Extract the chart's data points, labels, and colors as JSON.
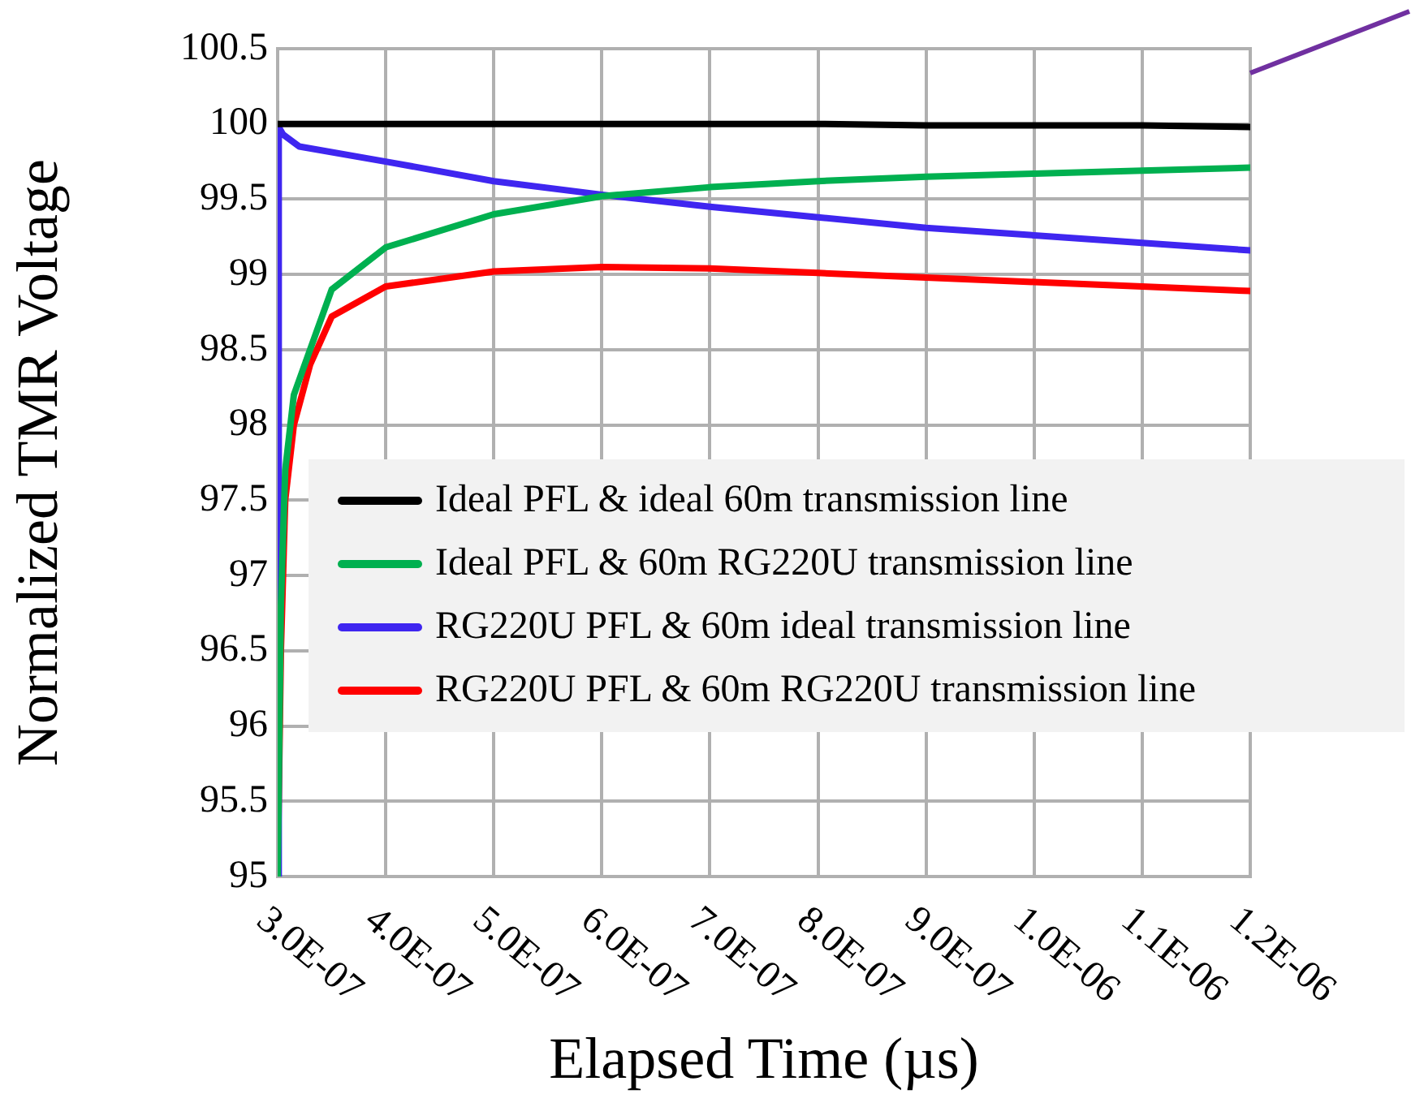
{
  "chart_data": {
    "type": "line",
    "xlabel": "Elapsed Time (µs)",
    "ylabel": "Normalized TMR Voltage",
    "xlim": [
      3e-07,
      1.2e-06
    ],
    "xticks": [
      {
        "value": 3e-07,
        "label": "3.0E-07"
      },
      {
        "value": 4e-07,
        "label": "4.0E-07"
      },
      {
        "value": 5e-07,
        "label": "5.0E-07"
      },
      {
        "value": 6e-07,
        "label": "6.0E-07"
      },
      {
        "value": 7e-07,
        "label": "7.0E-07"
      },
      {
        "value": 8e-07,
        "label": "8.0E-07"
      },
      {
        "value": 9e-07,
        "label": "9.0E-07"
      },
      {
        "value": 1e-06,
        "label": "1.0E-06"
      },
      {
        "value": 1.1e-06,
        "label": "1.1E-06"
      },
      {
        "value": 1.2e-06,
        "label": "1.2E-06"
      }
    ],
    "ylim": [
      95,
      100.5
    ],
    "yticks": [
      95,
      95.5,
      96,
      96.5,
      97,
      97.5,
      98,
      98.5,
      99,
      99.5,
      100,
      100.5
    ],
    "grid": true,
    "legend": "center",
    "marker": "none",
    "line_style": "solid",
    "series": [
      {
        "name": "Ideal PFL & ideal 60m transmission line",
        "color": "#000000",
        "x": [
          3e-07,
          4e-07,
          5e-07,
          6e-07,
          7e-07,
          8e-07,
          9e-07,
          1e-06,
          1.1e-06,
          1.2e-06
        ],
        "values": [
          100,
          100,
          100,
          100,
          100,
          100,
          99.99,
          99.99,
          99.99,
          99.98
        ]
      },
      {
        "name": "Ideal PFL & 60m RG220U transmission line",
        "color": "#00b050",
        "x": [
          3e-07,
          3.03e-07,
          3.07e-07,
          3.15e-07,
          3.3e-07,
          3.5e-07,
          4e-07,
          5e-07,
          6e-07,
          7e-07,
          8e-07,
          9e-07,
          1e-06,
          1.1e-06,
          1.2e-06
        ],
        "values": [
          95,
          96.8,
          97.7,
          98.2,
          98.5,
          98.9,
          99.18,
          99.4,
          99.52,
          99.58,
          99.62,
          99.65,
          99.67,
          99.69,
          99.71
        ]
      },
      {
        "name": "RG220U PFL & 60m ideal transmission line",
        "color": "#3f26f0",
        "x": [
          3e-07,
          3.01e-07,
          3.05e-07,
          3.2e-07,
          4e-07,
          5e-07,
          6e-07,
          7e-07,
          8e-07,
          9e-07,
          1e-06,
          1.1e-06,
          1.2e-06
        ],
        "values": [
          95,
          99.98,
          99.93,
          99.85,
          99.75,
          99.62,
          99.53,
          99.45,
          99.38,
          99.31,
          99.26,
          99.21,
          99.16
        ]
      },
      {
        "name": "RG220U PFL & 60m RG220U transmission line",
        "color": "#ff0000",
        "x": [
          3e-07,
          3.03e-07,
          3.07e-07,
          3.15e-07,
          3.3e-07,
          3.5e-07,
          4e-07,
          5e-07,
          6e-07,
          7e-07,
          8e-07,
          9e-07,
          1e-06,
          1.1e-06,
          1.2e-06
        ],
        "values": [
          95,
          96.5,
          97.5,
          98,
          98.4,
          98.72,
          98.92,
          99.02,
          99.05,
          99.04,
          99.01,
          98.98,
          98.95,
          98.92,
          98.89
        ]
      }
    ]
  }
}
